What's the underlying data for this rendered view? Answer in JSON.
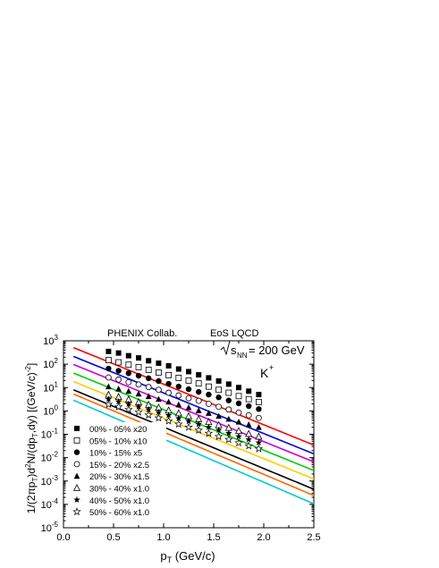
{
  "chart_data": {
    "type": "scatter",
    "title": "",
    "xlabel_main": "p",
    "xlabel_sub": "T",
    "xlabel_rest": " (GeV/c)",
    "ylabel": "1/(2πp_T)d²N/(dp_T dy) [(GeV/c)⁻²]",
    "ylabel_parts": {
      "a": "1/(2πp",
      "b": "T",
      "c": ")d",
      "d": "2",
      "e": "N/(dp",
      "f": "T",
      "g": ",dy) [(GeV/c)",
      "h": "-2",
      "i": "]"
    },
    "xlim": [
      0.0,
      2.5
    ],
    "ylim_log10": [
      -5,
      3
    ],
    "log_y": true,
    "x_ticks": [
      {
        "v": 0.0,
        "label": "0.0"
      },
      {
        "v": 0.5,
        "label": "0.5"
      },
      {
        "v": 1.0,
        "label": "1.0"
      },
      {
        "v": 1.5,
        "label": "1.5"
      },
      {
        "v": 2.0,
        "label": "2.0"
      },
      {
        "v": 2.5,
        "label": "2.5"
      }
    ],
    "y_ticks": [
      {
        "exp": 3,
        "base": "10",
        "pow": "3"
      },
      {
        "exp": 2,
        "base": "10",
        "pow": "2"
      },
      {
        "exp": 1,
        "base": "10",
        "pow": "1"
      },
      {
        "exp": 0,
        "base": "10",
        "pow": "0"
      },
      {
        "exp": -1,
        "base": "10",
        "pow": "-1"
      },
      {
        "exp": -2,
        "base": "10",
        "pow": "-2"
      },
      {
        "exp": -3,
        "base": "10",
        "pow": "-3"
      },
      {
        "exp": -4,
        "base": "10",
        "pow": "-4"
      },
      {
        "exp": -5,
        "base": "10",
        "pow": "-5"
      }
    ],
    "annotations": {
      "collab": "PHENIX Collab.",
      "eos": "EoS LQCD",
      "energy_main": "s",
      "energy_sub": "NN",
      "energy_rest": " = 200 GeV",
      "particle_main": "K",
      "particle_sup": "+"
    },
    "legend_position": "bottom-left",
    "series": [
      {
        "name": "00% - 05% x20",
        "marker": "filled-square",
        "curve_color": "#ff0000",
        "x": [
          0.45,
          0.55,
          0.65,
          0.75,
          0.85,
          0.95,
          1.05,
          1.15,
          1.25,
          1.35,
          1.45,
          1.55,
          1.65,
          1.75,
          1.85,
          1.95
        ],
        "y": [
          350,
          300,
          230,
          185,
          140,
          110,
          85,
          62,
          48,
          35,
          26,
          19,
          14,
          10,
          7,
          5
        ],
        "curve_x": [
          0.1,
          2.5
        ],
        "curve_A": 760,
        "curve_T": 0.25
      },
      {
        "name": "05% - 10% x10",
        "marker": "open-square",
        "curve_color": "#0000dd",
        "x": [
          0.45,
          0.55,
          0.65,
          0.75,
          0.85,
          0.95,
          1.05,
          1.15,
          1.25,
          1.35,
          1.45,
          1.55,
          1.65,
          1.75,
          1.85,
          1.95
        ],
        "y": [
          150,
          120,
          95,
          75,
          57,
          44,
          34,
          26,
          20,
          15,
          11,
          8,
          6,
          4.3,
          3.2,
          2.4
        ],
        "curve_x": [
          0.1,
          2.5
        ],
        "curve_A": 320,
        "curve_T": 0.25
      },
      {
        "name": "10% - 15% x5",
        "marker": "filled-circle",
        "curve_color": "#cc00cc",
        "x": [
          0.45,
          0.55,
          0.65,
          0.75,
          0.85,
          0.95,
          1.05,
          1.15,
          1.25,
          1.35,
          1.45,
          1.55,
          1.65,
          1.75,
          1.85,
          1.95
        ],
        "y": [
          65,
          52,
          41,
          32,
          25,
          19,
          14.5,
          11,
          8.5,
          6.5,
          5,
          3.8,
          2.8,
          2.1,
          1.6,
          1.2
        ],
        "curve_x": [
          0.1,
          2.5
        ],
        "curve_A": 145,
        "curve_T": 0.25
      },
      {
        "name": "15% - 20% x2.5",
        "marker": "open-circle",
        "curve_color": "#00cc00",
        "x": [
          0.45,
          0.55,
          0.65,
          0.75,
          0.85,
          0.95,
          1.05,
          1.15,
          1.25,
          1.35,
          1.45,
          1.55,
          1.65,
          1.75,
          1.85,
          1.95
        ],
        "y": [
          27,
          22,
          17,
          13.5,
          10.5,
          8,
          6,
          4.6,
          3.5,
          2.7,
          2,
          1.5,
          1.15,
          0.85,
          0.65,
          0.5
        ],
        "curve_x": [
          0.1,
          2.5
        ],
        "curve_A": 62,
        "curve_T": 0.25
      },
      {
        "name": "20% - 30% x1.5",
        "marker": "filled-triangle",
        "curve_color": "#ffcc00",
        "x": [
          0.45,
          0.55,
          0.65,
          0.75,
          0.85,
          0.95,
          1.05,
          1.15,
          1.25,
          1.35,
          1.45,
          1.55,
          1.65,
          1.75,
          1.85,
          1.95
        ],
        "y": [
          11,
          8.8,
          7,
          5.4,
          4.2,
          3.2,
          2.45,
          1.85,
          1.4,
          1.05,
          0.8,
          0.6,
          0.45,
          0.34,
          0.26,
          0.2
        ],
        "curve_x": [
          0.1,
          2.5
        ],
        "curve_A": 27,
        "curve_T": 0.25
      },
      {
        "name": "30% - 40% x1.0",
        "marker": "open-triangle",
        "curve_color": "#000000",
        "x": [
          0.45,
          0.55,
          0.65,
          0.75,
          0.85,
          0.95,
          1.05,
          1.15,
          1.25,
          1.35,
          1.45,
          1.55,
          1.65,
          1.75,
          1.85,
          1.95
        ],
        "y": [
          5,
          4,
          3.1,
          2.4,
          1.85,
          1.4,
          1.06,
          0.8,
          0.6,
          0.45,
          0.34,
          0.25,
          0.19,
          0.14,
          0.105,
          0.08
        ],
        "curve_x": [
          0.1,
          2.5
        ],
        "curve_A": 12,
        "curve_T": 0.245
      },
      {
        "name": "40% - 50% x1.0",
        "marker": "filled-star",
        "curve_color": "#ff6600",
        "x": [
          0.45,
          0.55,
          0.65,
          0.75,
          0.85,
          0.95,
          1.05,
          1.15,
          1.25,
          1.35,
          1.45,
          1.55,
          1.65,
          1.75,
          1.85,
          1.95
        ],
        "y": [
          3.2,
          2.5,
          1.95,
          1.5,
          1.15,
          0.87,
          0.65,
          0.48,
          0.36,
          0.27,
          0.2,
          0.15,
          0.11,
          0.08,
          0.06,
          0.044
        ],
        "curve_x": [
          0.1,
          2.5
        ],
        "curve_A": 8,
        "curve_T": 0.24
      },
      {
        "name": "50% - 60% x1.0",
        "marker": "open-star",
        "curve_color": "#00cccc",
        "x": [
          0.45,
          0.55,
          0.65,
          0.75,
          0.85,
          0.95,
          1.05,
          1.15,
          1.25,
          1.35,
          1.45,
          1.55,
          1.65,
          1.75,
          1.85,
          1.95
        ],
        "y": [
          1.9,
          1.5,
          1.15,
          0.88,
          0.67,
          0.5,
          0.37,
          0.27,
          0.2,
          0.15,
          0.11,
          0.08,
          0.06,
          0.043,
          0.032,
          0.024
        ],
        "curve_x": [
          0.1,
          2.5
        ],
        "curve_A": 4.4,
        "curve_T": 0.235
      }
    ]
  }
}
